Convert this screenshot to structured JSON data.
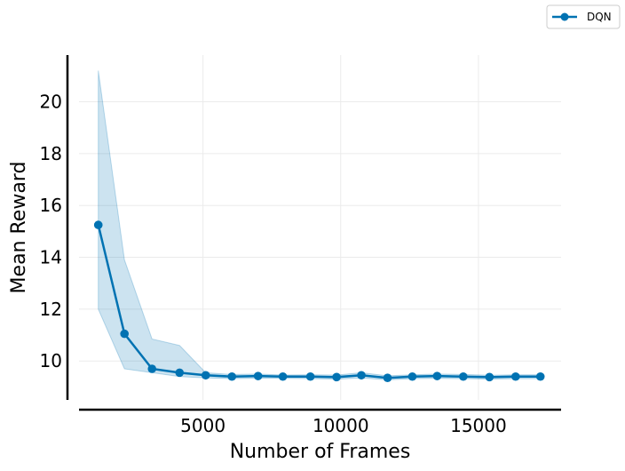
{
  "chart_data": {
    "type": "line",
    "title": "",
    "xlabel": "Number of Frames",
    "ylabel": "Mean Reward",
    "xlim": [
      500,
      18000
    ],
    "ylim": [
      8.5,
      21.8
    ],
    "xticks": [
      5000,
      10000,
      15000
    ],
    "yticks": [
      10,
      12,
      14,
      16,
      18,
      20
    ],
    "grid": true,
    "legend_position": "top-right",
    "series": [
      {
        "name": "DQN",
        "color": "#0072B2",
        "x": [
          1200,
          2150,
          3150,
          4150,
          5100,
          6050,
          7000,
          7900,
          8900,
          9850,
          10750,
          11700,
          12600,
          13500,
          14450,
          15400,
          16350,
          17250
        ],
        "y": [
          15.25,
          11.05,
          9.7,
          9.55,
          9.45,
          9.4,
          9.42,
          9.4,
          9.4,
          9.38,
          9.45,
          9.35,
          9.4,
          9.42,
          9.4,
          9.38,
          9.4,
          9.4
        ],
        "y_upper": [
          21.2,
          13.9,
          10.85,
          10.6,
          9.55,
          9.48,
          9.5,
          9.46,
          9.47,
          9.46,
          9.55,
          9.43,
          9.47,
          9.5,
          9.48,
          9.45,
          9.47,
          9.47
        ],
        "y_lower": [
          12.0,
          9.7,
          9.55,
          9.4,
          9.35,
          9.32,
          9.34,
          9.33,
          9.32,
          9.3,
          9.35,
          9.27,
          9.32,
          9.33,
          9.32,
          9.3,
          9.32,
          9.32
        ]
      }
    ]
  }
}
